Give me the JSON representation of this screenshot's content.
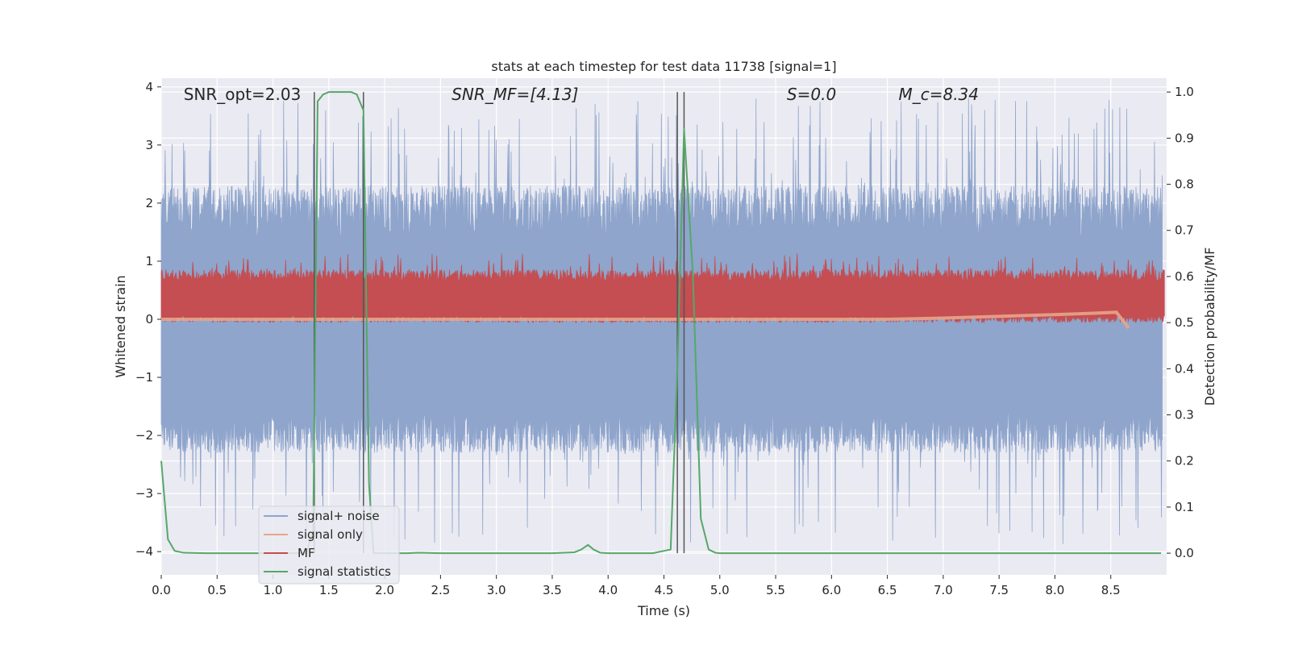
{
  "chart_data": {
    "type": "line",
    "title": "stats at each timestep for test data 11738 [signal=1]",
    "xlabel": "Time (s)",
    "ylabel": "Whitened strain",
    "y2label": "Detection probability/MF",
    "xlim": [
      0.0,
      9.0
    ],
    "ylim": [
      -4.4,
      4.15
    ],
    "y2lim": [
      -0.047,
      1.03
    ],
    "xticks": [
      0.0,
      0.5,
      1.0,
      1.5,
      2.0,
      2.5,
      3.0,
      3.5,
      4.0,
      4.5,
      5.0,
      5.5,
      6.0,
      6.5,
      7.0,
      7.5,
      8.0,
      8.5
    ],
    "xtick_labels": [
      "0.0",
      "0.5",
      "1.0",
      "1.5",
      "2.0",
      "2.5",
      "3.0",
      "3.5",
      "4.0",
      "4.5",
      "5.0",
      "5.5",
      "6.0",
      "6.5",
      "7.0",
      "7.5",
      "8.0",
      "8.5"
    ],
    "yticks": [
      -4,
      -3,
      -2,
      -1,
      0,
      1,
      2,
      3,
      4
    ],
    "ytick_labels": [
      "−4",
      "−3",
      "−2",
      "−1",
      "0",
      "1",
      "2",
      "3",
      "4"
    ],
    "y2ticks": [
      0.0,
      0.1,
      0.2,
      0.3,
      0.4,
      0.5,
      0.6,
      0.7,
      0.8,
      0.9,
      1.0
    ],
    "y2tick_labels": [
      "0.0",
      "0.1",
      "0.2",
      "0.3",
      "0.4",
      "0.5",
      "0.6",
      "0.7",
      "0.8",
      "0.9",
      "1.0"
    ],
    "grid": true,
    "legend_position": "lower-left",
    "annotations": [
      {
        "text": "SNR_opt=2.03",
        "x": 0.2,
        "italic": false
      },
      {
        "text": "SNR_MF=[4.13]",
        "x": 2.6,
        "italic": true
      },
      {
        "text": "S=0.0",
        "x": 5.6,
        "italic": true
      },
      {
        "text": "M_c=8.34",
        "x": 6.6,
        "italic": true
      }
    ],
    "vlines": [
      1.37,
      1.81,
      4.62,
      4.68
    ],
    "series": [
      {
        "name": "signal+ noise",
        "color": "#8fa5cc",
        "axis": "left",
        "description_kind": "noisy strain",
        "amplitude_core": [
          -1.6,
          1.4
        ],
        "amplitude_peaks": [
          -3.9,
          3.8
        ]
      },
      {
        "name": "signal only",
        "color": "#e8a58a",
        "axis": "left",
        "x": [
          0.0,
          6.5,
          7.0,
          7.5,
          8.0,
          8.3,
          8.55,
          8.66
        ],
        "y": [
          0.0,
          0.0,
          0.02,
          0.05,
          0.08,
          0.1,
          0.12,
          -0.15
        ]
      },
      {
        "name": "MF",
        "color": "#c44e52",
        "axis": "right",
        "band": [
          0.52,
          0.6
        ],
        "peaks": [
          0.5,
          0.65
        ]
      },
      {
        "name": "signal statistics",
        "color": "#55a868",
        "axis": "right",
        "x": [
          0.0,
          0.06,
          0.12,
          0.2,
          0.4,
          0.6,
          0.8,
          1.0,
          1.2,
          1.3,
          1.36,
          1.4,
          1.45,
          1.5,
          1.55,
          1.6,
          1.7,
          1.75,
          1.81,
          1.86,
          1.9,
          1.95,
          2.0,
          2.2,
          2.3,
          2.5,
          2.8,
          3.0,
          3.3,
          3.5,
          3.7,
          3.76,
          3.82,
          3.87,
          3.93,
          4.0,
          4.2,
          4.4,
          4.56,
          4.62,
          4.68,
          4.76,
          4.83,
          4.9,
          4.96,
          5.0,
          5.5,
          6.0,
          7.0,
          8.0,
          8.95
        ],
        "y": [
          0.2,
          0.03,
          0.005,
          0.001,
          0.0,
          0.0,
          0.0,
          0.0,
          0.0,
          0.0,
          0.05,
          0.98,
          0.995,
          1.0,
          1.0,
          1.0,
          1.0,
          0.995,
          0.96,
          0.15,
          0.0,
          0.0,
          0.0,
          0.0,
          0.001,
          0.0,
          0.0,
          0.0,
          0.0,
          0.0,
          0.002,
          0.008,
          0.018,
          0.008,
          0.001,
          0.0,
          0.0,
          0.0,
          0.008,
          0.4,
          0.92,
          0.6,
          0.075,
          0.008,
          0.001,
          0.0,
          0.0,
          0.0,
          0.0,
          0.0,
          0.0
        ]
      }
    ]
  }
}
